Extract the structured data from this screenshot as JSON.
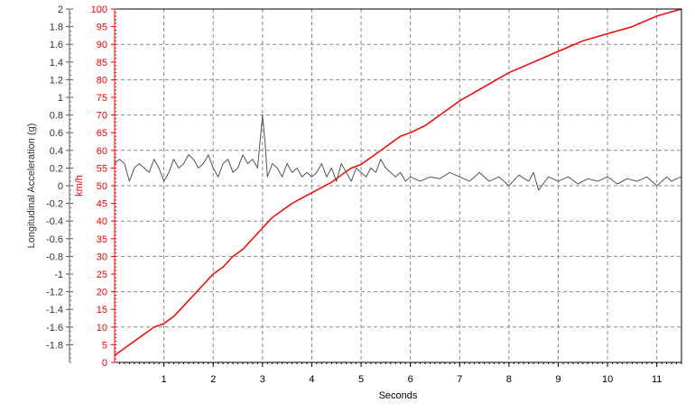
{
  "chart_data": {
    "type": "line",
    "title": "",
    "xlabel": "Seconds",
    "x_ticks": [
      "1",
      "2",
      "3",
      "4",
      "5",
      "6",
      "7",
      "8",
      "9",
      "10",
      "11"
    ],
    "xlim": [
      0,
      11.5
    ],
    "grid": true,
    "y_axes": [
      {
        "id": "accel",
        "label": "Longitudinal Acceleration (g)",
        "color": "#555555",
        "lim": [
          -2,
          2
        ],
        "ticks": [
          "2",
          "1.8",
          "1.6",
          "1.4",
          "1.2",
          "1",
          "0.8",
          "0.6",
          "0.4",
          "0.2",
          "0",
          "-0.2",
          "-0.4",
          "-0.6",
          "-0.8",
          "-1",
          "-1.2",
          "-1.4",
          "-1.6",
          "-1.8"
        ]
      },
      {
        "id": "speed",
        "label": "km/h",
        "color": "#ff0000",
        "lim": [
          0,
          100
        ],
        "ticks": [
          "100",
          "95",
          "90",
          "85",
          "80",
          "75",
          "70",
          "65",
          "60",
          "55",
          "50",
          "45",
          "40",
          "35",
          "30",
          "25",
          "20",
          "15",
          "10",
          "5",
          "0"
        ]
      }
    ],
    "series": [
      {
        "axis": "speed",
        "color": "#ff0000",
        "x": [
          0,
          0.2,
          0.4,
          0.6,
          0.8,
          1.0,
          1.2,
          1.4,
          1.6,
          1.8,
          2.0,
          2.2,
          2.4,
          2.6,
          2.8,
          3.0,
          3.2,
          3.4,
          3.6,
          3.8,
          4.0,
          4.2,
          4.4,
          4.6,
          4.8,
          5.0,
          5.2,
          5.4,
          5.6,
          5.8,
          6.0,
          6.3,
          6.6,
          7.0,
          7.5,
          8.0,
          8.5,
          9.0,
          9.5,
          10.0,
          10.5,
          11.0,
          11.5
        ],
        "y": [
          2,
          4,
          6,
          8,
          10,
          11,
          13,
          16,
          19,
          22,
          25,
          27,
          30,
          32,
          35,
          38,
          41,
          43,
          45,
          46.5,
          48,
          49.5,
          51,
          53,
          55,
          56,
          58,
          60,
          62,
          64,
          65,
          67,
          70,
          74,
          78,
          82,
          85,
          88,
          91,
          93,
          95,
          98,
          100
        ]
      },
      {
        "axis": "accel",
        "color": "#555555",
        "x": [
          0,
          0.1,
          0.2,
          0.3,
          0.4,
          0.5,
          0.6,
          0.7,
          0.8,
          0.9,
          1.0,
          1.1,
          1.2,
          1.3,
          1.4,
          1.5,
          1.6,
          1.7,
          1.8,
          1.9,
          2.0,
          2.1,
          2.2,
          2.3,
          2.4,
          2.5,
          2.6,
          2.7,
          2.8,
          2.9,
          3.0,
          3.05,
          3.1,
          3.2,
          3.3,
          3.4,
          3.5,
          3.6,
          3.7,
          3.8,
          3.9,
          4.0,
          4.1,
          4.2,
          4.3,
          4.4,
          4.5,
          4.6,
          4.7,
          4.8,
          4.9,
          5.0,
          5.1,
          5.2,
          5.3,
          5.4,
          5.5,
          5.6,
          5.7,
          5.8,
          5.9,
          6.0,
          6.2,
          6.4,
          6.6,
          6.8,
          7.0,
          7.2,
          7.4,
          7.6,
          7.8,
          8.0,
          8.2,
          8.4,
          8.5,
          8.6,
          8.8,
          9.0,
          9.2,
          9.4,
          9.6,
          9.8,
          10.0,
          10.2,
          10.4,
          10.6,
          10.8,
          11.0,
          11.1,
          11.2,
          11.3,
          11.4,
          11.5
        ],
        "y": [
          0.25,
          0.3,
          0.25,
          0.05,
          0.2,
          0.25,
          0.2,
          0.15,
          0.3,
          0.2,
          0.05,
          0.15,
          0.3,
          0.2,
          0.25,
          0.35,
          0.3,
          0.2,
          0.25,
          0.35,
          0.2,
          0.1,
          0.25,
          0.3,
          0.15,
          0.2,
          0.35,
          0.25,
          0.3,
          0.2,
          0.8,
          0.5,
          0.1,
          0.25,
          0.2,
          0.1,
          0.25,
          0.15,
          0.2,
          0.1,
          0.15,
          0.1,
          0.15,
          0.25,
          0.1,
          0.2,
          0.05,
          0.25,
          0.15,
          0.05,
          0.2,
          0.15,
          0.1,
          0.2,
          0.15,
          0.3,
          0.2,
          0.15,
          0.1,
          0.15,
          0.05,
          0.1,
          0.05,
          0.1,
          0.08,
          0.15,
          0.1,
          0.05,
          0.15,
          0.05,
          0.1,
          0.0,
          0.12,
          0.05,
          0.15,
          -0.05,
          0.1,
          0.05,
          0.1,
          0.02,
          0.08,
          0.05,
          0.1,
          0.02,
          0.08,
          0.05,
          0.1,
          0.0,
          0.05,
          0.1,
          0.05,
          0.08,
          0.1
        ]
      }
    ]
  }
}
